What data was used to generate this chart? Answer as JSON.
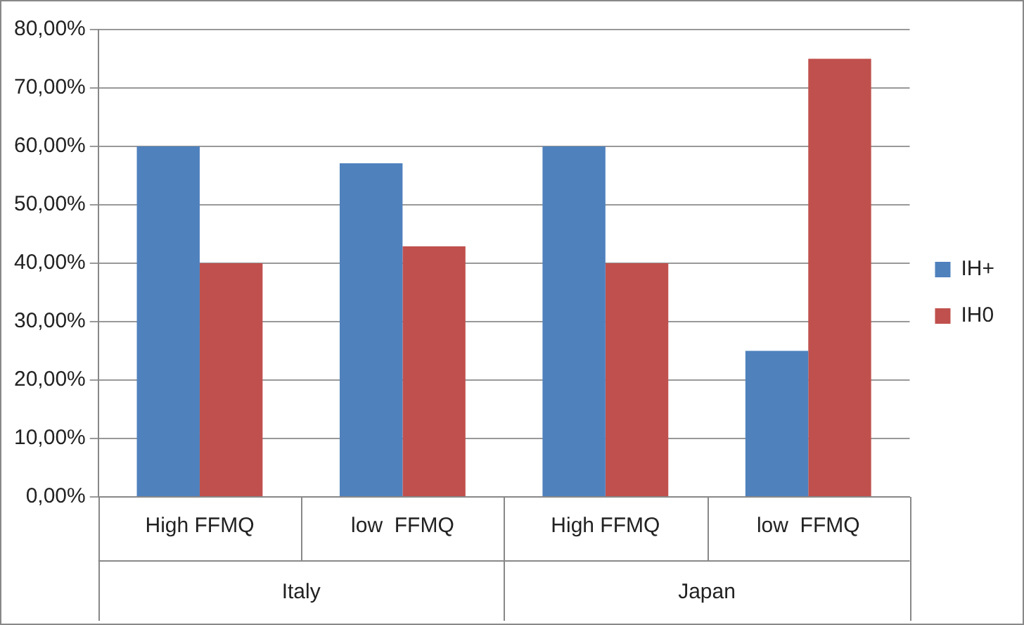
{
  "chart_data": {
    "type": "bar",
    "categories": [
      "High FFMQ",
      "low  FFMQ",
      "High FFMQ",
      "low  FFMQ"
    ],
    "series": [
      {
        "name": "IH+",
        "color": "#4f81bd",
        "values": [
          60,
          57.1,
          60,
          25
        ]
      },
      {
        "name": "IH0",
        "color": "#c0504d",
        "values": [
          40,
          42.9,
          40,
          75
        ]
      }
    ],
    "ylim": [
      0,
      80
    ],
    "yticks": [
      {
        "value": 0,
        "label": "0,00%"
      },
      {
        "value": 10,
        "label": "10,00%"
      },
      {
        "value": 20,
        "label": "20,00%"
      },
      {
        "value": 30,
        "label": "30,00%"
      },
      {
        "value": 40,
        "label": "40,00%"
      },
      {
        "value": 50,
        "label": "50,00%"
      },
      {
        "value": 60,
        "label": "60,00%"
      },
      {
        "value": 70,
        "label": "70,00%"
      },
      {
        "value": 80,
        "label": "80,00%"
      }
    ],
    "annotations": [
      "Italy",
      "Japan"
    ],
    "grid": "y",
    "legend": "right"
  }
}
